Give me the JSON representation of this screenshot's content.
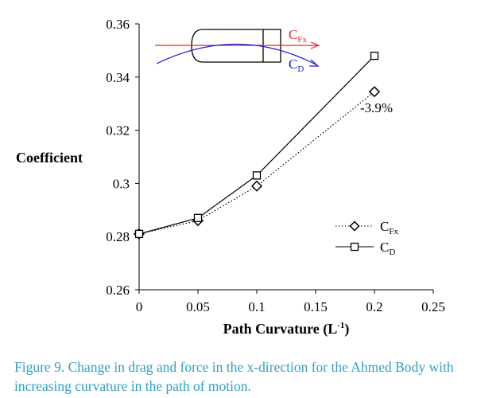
{
  "chart_data": {
    "type": "line",
    "x": [
      0,
      0.05,
      0.1,
      0.2
    ],
    "series": [
      {
        "name": "CFx",
        "name_main": "C",
        "name_sub": "Fx",
        "marker": "diamond",
        "line_style": "dotted",
        "values": [
          0.281,
          0.286,
          0.299,
          0.3345
        ]
      },
      {
        "name": "CD",
        "name_main": "C",
        "name_sub": "D",
        "marker": "square",
        "line_style": "solid",
        "values": [
          0.281,
          0.287,
          0.303,
          0.348
        ]
      }
    ],
    "xlabel": {
      "main": "Path Curvature (L",
      "sup": "-1",
      "end": ")"
    },
    "ylabel": "Coefficient",
    "xlim": [
      0,
      0.25
    ],
    "ylim": [
      0.26,
      0.36
    ],
    "xticks": [
      "0",
      "0.05",
      "0.1",
      "0.15",
      "0.2",
      "0.25"
    ],
    "yticks": [
      "0.26",
      "0.28",
      "0.3",
      "0.32",
      "0.34",
      "0.36"
    ],
    "annotation": "-3.9%",
    "legend_position": "bottom-right",
    "inset": {
      "fx_label": {
        "main": "C",
        "sub": "Fx"
      },
      "d_label": {
        "main": "C",
        "sub": "D"
      },
      "colors": {
        "fx": "#e8262b",
        "d": "#1f1fd1"
      }
    }
  },
  "caption": "Figure 9. Change in drag and force in the x-direction for the Ahmed Body with increasing curvature in the path of motion."
}
